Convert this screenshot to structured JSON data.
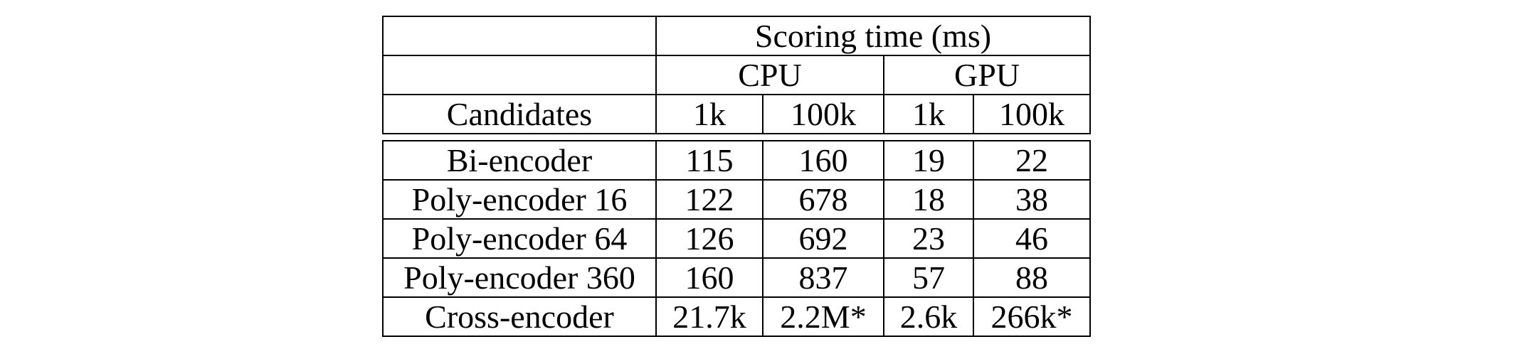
{
  "table": {
    "header": {
      "group_title": "Scoring time (ms)",
      "device_cpu": "CPU",
      "device_gpu": "GPU",
      "row_label": "Candidates",
      "cpu_1k": "1k",
      "cpu_100k": "100k",
      "gpu_1k": "1k",
      "gpu_100k": "100k"
    },
    "rows": [
      {
        "model": "Bi-encoder",
        "cpu_1k": "115",
        "cpu_100k": "160",
        "gpu_1k": "19",
        "gpu_100k": "22"
      },
      {
        "model": "Poly-encoder 16",
        "cpu_1k": "122",
        "cpu_100k": "678",
        "gpu_1k": "18",
        "gpu_100k": "38"
      },
      {
        "model": "Poly-encoder 64",
        "cpu_1k": "126",
        "cpu_100k": "692",
        "gpu_1k": "23",
        "gpu_100k": "46"
      },
      {
        "model": "Poly-encoder 360",
        "cpu_1k": "160",
        "cpu_100k": "837",
        "gpu_1k": "57",
        "gpu_100k": "88"
      },
      {
        "model": "Cross-encoder",
        "cpu_1k": "21.7k",
        "cpu_100k": "2.2M*",
        "gpu_1k": "2.6k",
        "gpu_100k": "266k*"
      }
    ]
  }
}
